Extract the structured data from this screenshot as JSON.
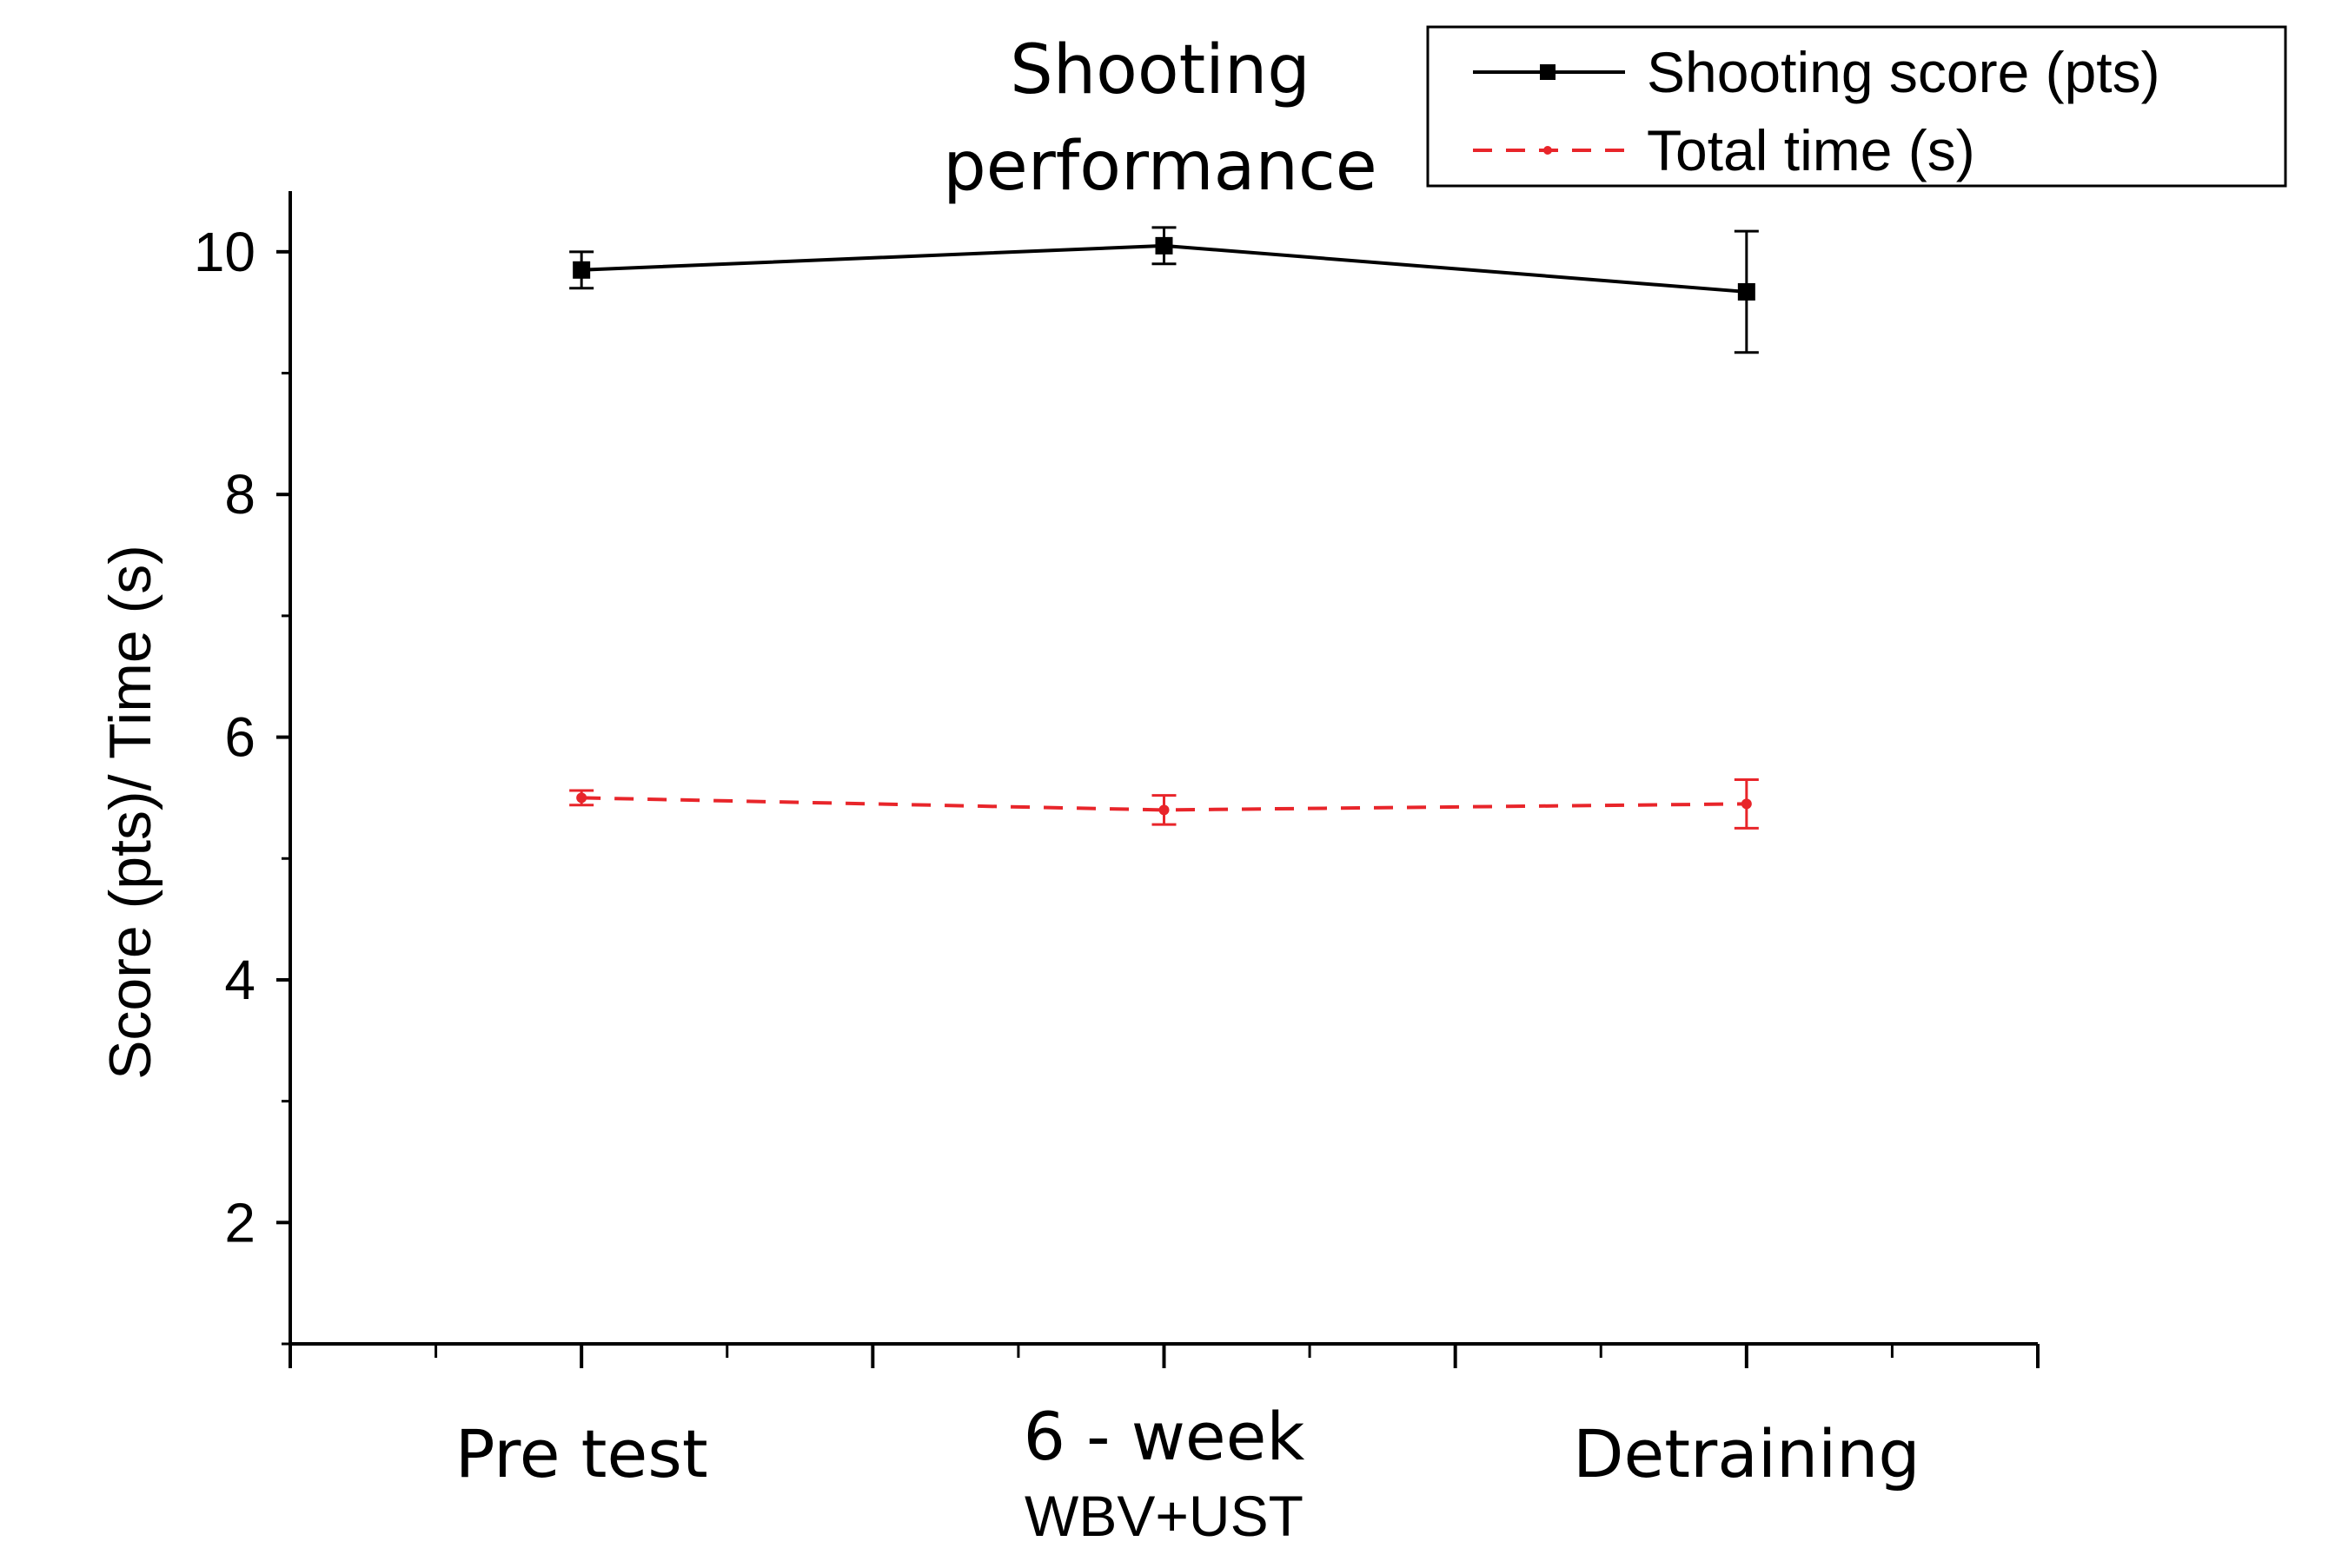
{
  "chart_data": {
    "type": "line",
    "title_lines": [
      "Shooting",
      "performance"
    ],
    "xlabel": "",
    "ylabel": "Score (pts)/ Time (s)",
    "categories": [
      {
        "label": "Pre test",
        "sublabel": ""
      },
      {
        "label": "6 - week",
        "sublabel": "WBV+UST"
      },
      {
        "label": "Detraining",
        "sublabel": ""
      }
    ],
    "x_range": [
      -0.5,
      2.5
    ],
    "ylim": [
      1,
      10.5
    ],
    "y_ticks": [
      2,
      4,
      6,
      8,
      10
    ],
    "grid": false,
    "legend_position": "top-right",
    "series": [
      {
        "name": "Shooting score (pts)",
        "color": "#000000",
        "line_style": "solid",
        "marker": "square",
        "values": [
          9.85,
          10.05,
          9.67
        ],
        "errors": [
          0.15,
          0.15,
          0.5
        ]
      },
      {
        "name": "Total time (s)",
        "color": "#e8252a",
        "line_style": "dashed",
        "marker": "dot",
        "values": [
          5.5,
          5.4,
          5.45
        ],
        "errors": [
          0.06,
          0.12,
          0.2
        ]
      }
    ]
  }
}
